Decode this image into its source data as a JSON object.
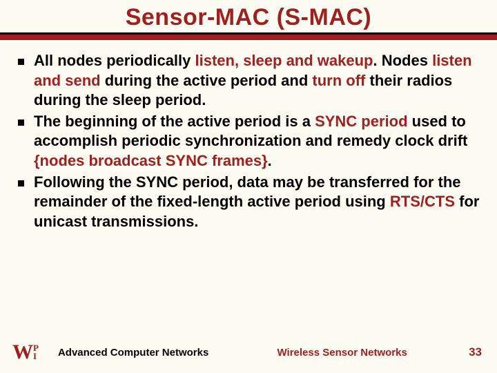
{
  "title": "Sensor-MAC (S-MAC)",
  "bullets": [
    {
      "prefix": "All nodes periodically ",
      "hl1": "listen, sleep and wakeup",
      "mid1": ". Nodes ",
      "hl2": "listen and send",
      "mid2": " during the active period and ",
      "hl3": "turn off",
      "suffix": " their radios during the sleep period."
    },
    {
      "prefix": "The beginning of the active period is a ",
      "hl1": "SYNC period",
      "mid1": " used to accomplish periodic synchronization and remedy clock drift ",
      "hl2": "{nodes broadcast SYNC frames}",
      "suffix": "."
    },
    {
      "prefix": "Following the SYNC period, data may be transferred for the remainder of the fixed-length active period using ",
      "hl1": "RTS/CTS",
      "suffix": " for unicast transmissions."
    }
  ],
  "footer": {
    "left": "Advanced Computer Networks",
    "center": "Wireless Sensor Networks",
    "page": "33"
  },
  "colors": {
    "accent": "#a02020",
    "background": "#fcfcf2",
    "text": "#000000"
  }
}
